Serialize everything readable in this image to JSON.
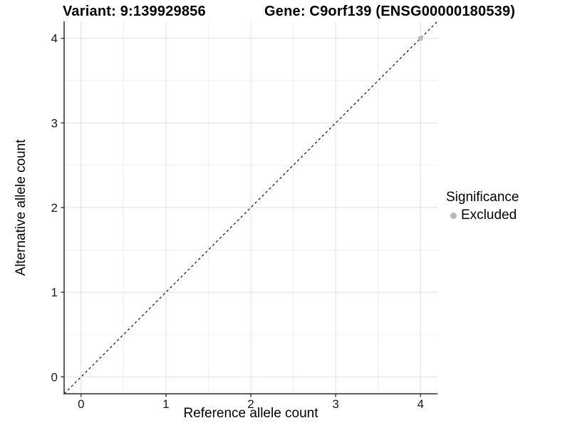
{
  "title": {
    "variant": "Variant: 9:139929856",
    "gene": "Gene: C9orf139 (ENSG00000180539)"
  },
  "axes": {
    "x_label": "Reference allele count",
    "y_label": "Alternative allele count"
  },
  "legend": {
    "title": "Significance",
    "items": [
      {
        "label": "Excluded",
        "color": "#bababa"
      }
    ]
  },
  "colors": {
    "background": "#ffffff",
    "axis_line": "#2b2b2b",
    "tick_mark": "#2b2b2b",
    "tick_label": "#1a1a1a",
    "grid_major": "#e4e4e4",
    "grid_minor": "#efefef",
    "reference_line": "#111111",
    "point_excluded": "#bababa"
  },
  "chart_data": {
    "type": "scatter",
    "title": "Variant: 9:139929856    Gene: C9orf139 (ENSG00000180539)",
    "xlabel": "Reference allele count",
    "ylabel": "Alternative allele count",
    "xlim": [
      -0.2,
      4.2
    ],
    "ylim": [
      -0.2,
      4.2
    ],
    "x_ticks": [
      0,
      1,
      2,
      3,
      4
    ],
    "y_ticks": [
      0,
      1,
      2,
      3,
      4
    ],
    "x_minor_ticks": [
      0.5,
      1.5,
      2.5,
      3.5
    ],
    "y_minor_ticks": [
      0.5,
      1.5,
      2.5,
      3.5
    ],
    "grid": true,
    "legend_position": "right",
    "legend_title": "Significance",
    "series": [
      {
        "name": "Excluded",
        "color": "#bababa",
        "points": [
          {
            "x": 4,
            "y": 4
          }
        ]
      }
    ],
    "reference_line": {
      "kind": "identity",
      "slope": 1,
      "intercept": 0,
      "style": "dashed",
      "color": "#111111"
    }
  }
}
